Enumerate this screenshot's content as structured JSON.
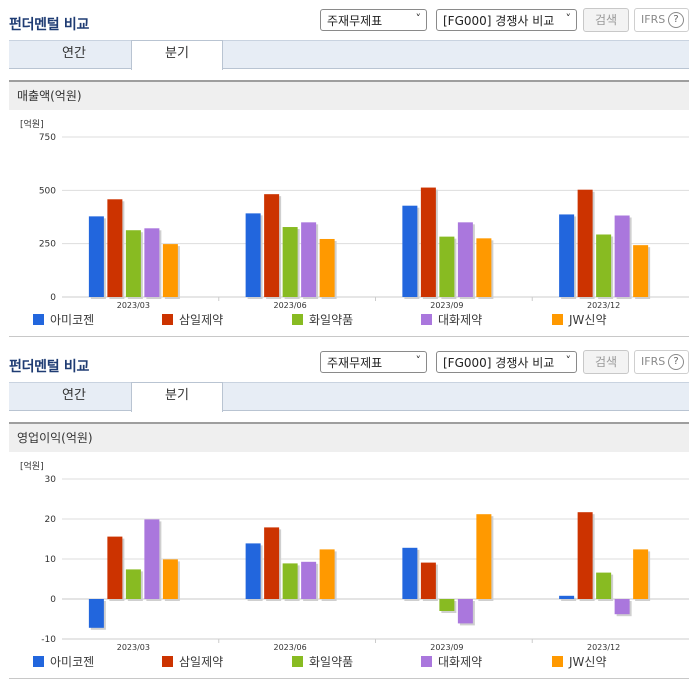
{
  "colors": {
    "s1": "#2266dd",
    "s2": "#cc3300",
    "s3": "#88bb22",
    "s4": "#aa77dd",
    "s5": "#ff9900"
  },
  "panels": [
    {
      "title": "펀더멘털 비교",
      "select1": "주재무제표",
      "select2": "[FG000] 경쟁사 비교",
      "search_label": "검색",
      "ifrs_label": "IFRS",
      "help_icon": "?",
      "tabs": [
        "연간",
        "분기"
      ],
      "active_tab": 1,
      "chart_title": "매출액(억원)",
      "unit": "[억원]",
      "chart_data": {
        "type": "bar",
        "categories": [
          "2023/03",
          "2023/06",
          "2023/09",
          "2023/12"
        ],
        "ylim": [
          0,
          750
        ],
        "yticks": [
          "0",
          "250",
          "500",
          "750"
        ],
        "ytick_values": [
          0,
          250,
          500,
          750
        ],
        "series": [
          {
            "name": "아미코젠",
            "values": [
              378,
              392,
              428,
              387
            ]
          },
          {
            "name": "삼일제약",
            "values": [
              458,
              482,
              513,
              503
            ]
          },
          {
            "name": "화일약품",
            "values": [
              313,
              328,
              283,
              293
            ]
          },
          {
            "name": "대화제약",
            "values": [
              322,
              350,
              350,
              382
            ]
          },
          {
            "name": "JW신약",
            "values": [
              248,
              272,
              275,
              243
            ]
          }
        ]
      }
    },
    {
      "title": "펀더멘털 비교",
      "select1": "주재무제표",
      "select2": "[FG000] 경쟁사 비교",
      "search_label": "검색",
      "ifrs_label": "IFRS",
      "help_icon": "?",
      "tabs": [
        "연간",
        "분기"
      ],
      "active_tab": 1,
      "chart_title": "영업이익(억원)",
      "unit": "[억원]",
      "chart_data": {
        "type": "bar",
        "categories": [
          "2023/03",
          "2023/06",
          "2023/09",
          "2023/12"
        ],
        "ylim": [
          -10,
          30
        ],
        "yticks": [
          "-10",
          "0",
          "10",
          "20",
          "30"
        ],
        "ytick_values": [
          -10,
          0,
          10,
          20,
          30
        ],
        "series": [
          {
            "name": "아미코젠",
            "values": [
              -7.2,
              13.9,
              12.8,
              0.8
            ]
          },
          {
            "name": "삼일제약",
            "values": [
              15.6,
              17.9,
              9.1,
              21.7
            ]
          },
          {
            "name": "화일약품",
            "values": [
              7.4,
              8.9,
              -3.0,
              6.6
            ]
          },
          {
            "name": "대화제약",
            "values": [
              19.9,
              9.3,
              -6.1,
              -3.8
            ]
          },
          {
            "name": "JW신약",
            "values": [
              9.9,
              12.4,
              21.2,
              12.4
            ]
          }
        ]
      }
    }
  ]
}
